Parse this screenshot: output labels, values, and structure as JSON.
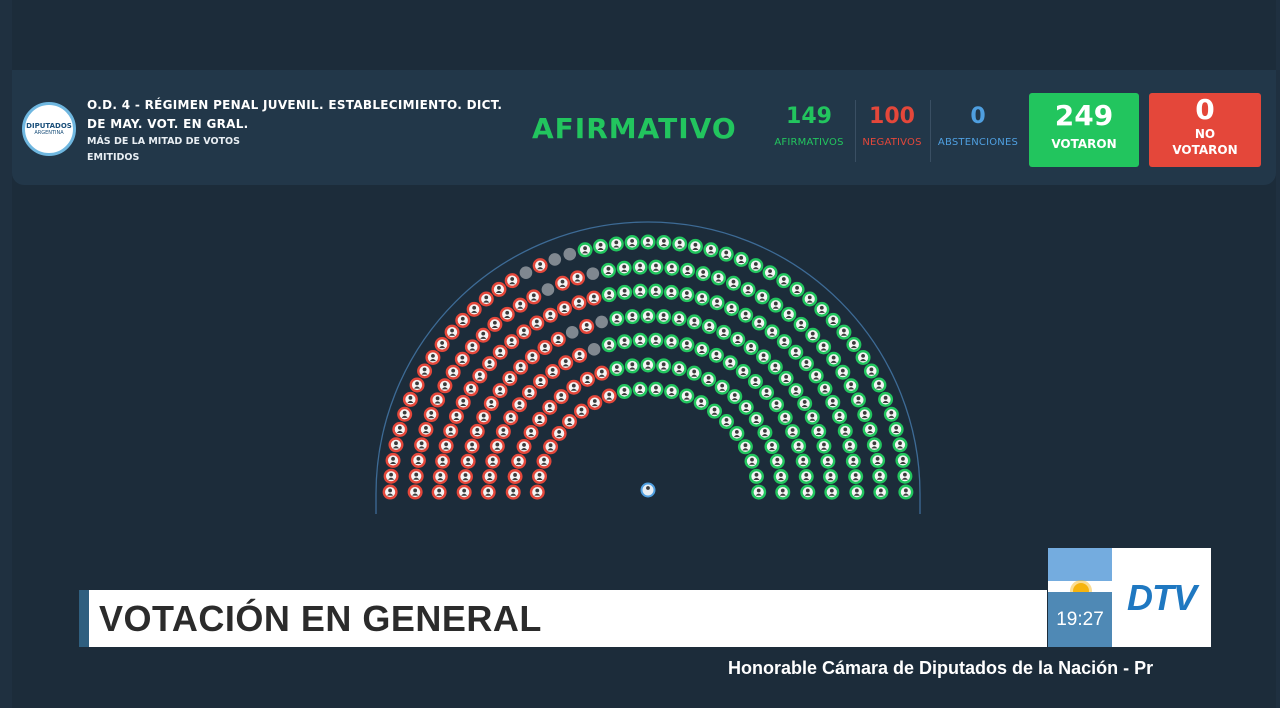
{
  "header": {
    "logo_line1": "DIPUTADOS",
    "logo_line2": "ARGENTINA",
    "title": "O.D. 4 - RÉGIMEN PENAL JUVENIL. ESTABLECIMIENTO. DICT. DE MAY. VOT. EN GRAL.",
    "majority_rule": "MÁS DE LA MITAD DE VOTOS EMITIDOS",
    "result": "AFIRMATIVO"
  },
  "stats": {
    "afirmativos": {
      "value": "149",
      "label": "AFIRMATIVOS"
    },
    "negativos": {
      "value": "100",
      "label": "NEGATIVOS"
    },
    "abstenciones": {
      "value": "0",
      "label": "ABSTENCIONES"
    },
    "votaron": {
      "value": "249",
      "label": "VOTARON"
    },
    "no_votaron": {
      "value": "0",
      "label": "NO VOTARON"
    }
  },
  "colors": {
    "afirmativo": "#22c55e",
    "negativo": "#e4473a",
    "abstencion": "#4f9fe0",
    "absent": "#808890"
  },
  "hemicycle": {
    "seats_total": 257,
    "affirmative_seats": 149,
    "negative_seats": 100,
    "absent_seats": 8,
    "president_icon": "president-seat-icon"
  },
  "lower_third": {
    "headline": "VOTACIÓN EN GENERAL",
    "clock": "19:27",
    "channel_logo": "DTV",
    "ticker": "Honorable Cámara de Diputados de la Nación - Pr"
  }
}
